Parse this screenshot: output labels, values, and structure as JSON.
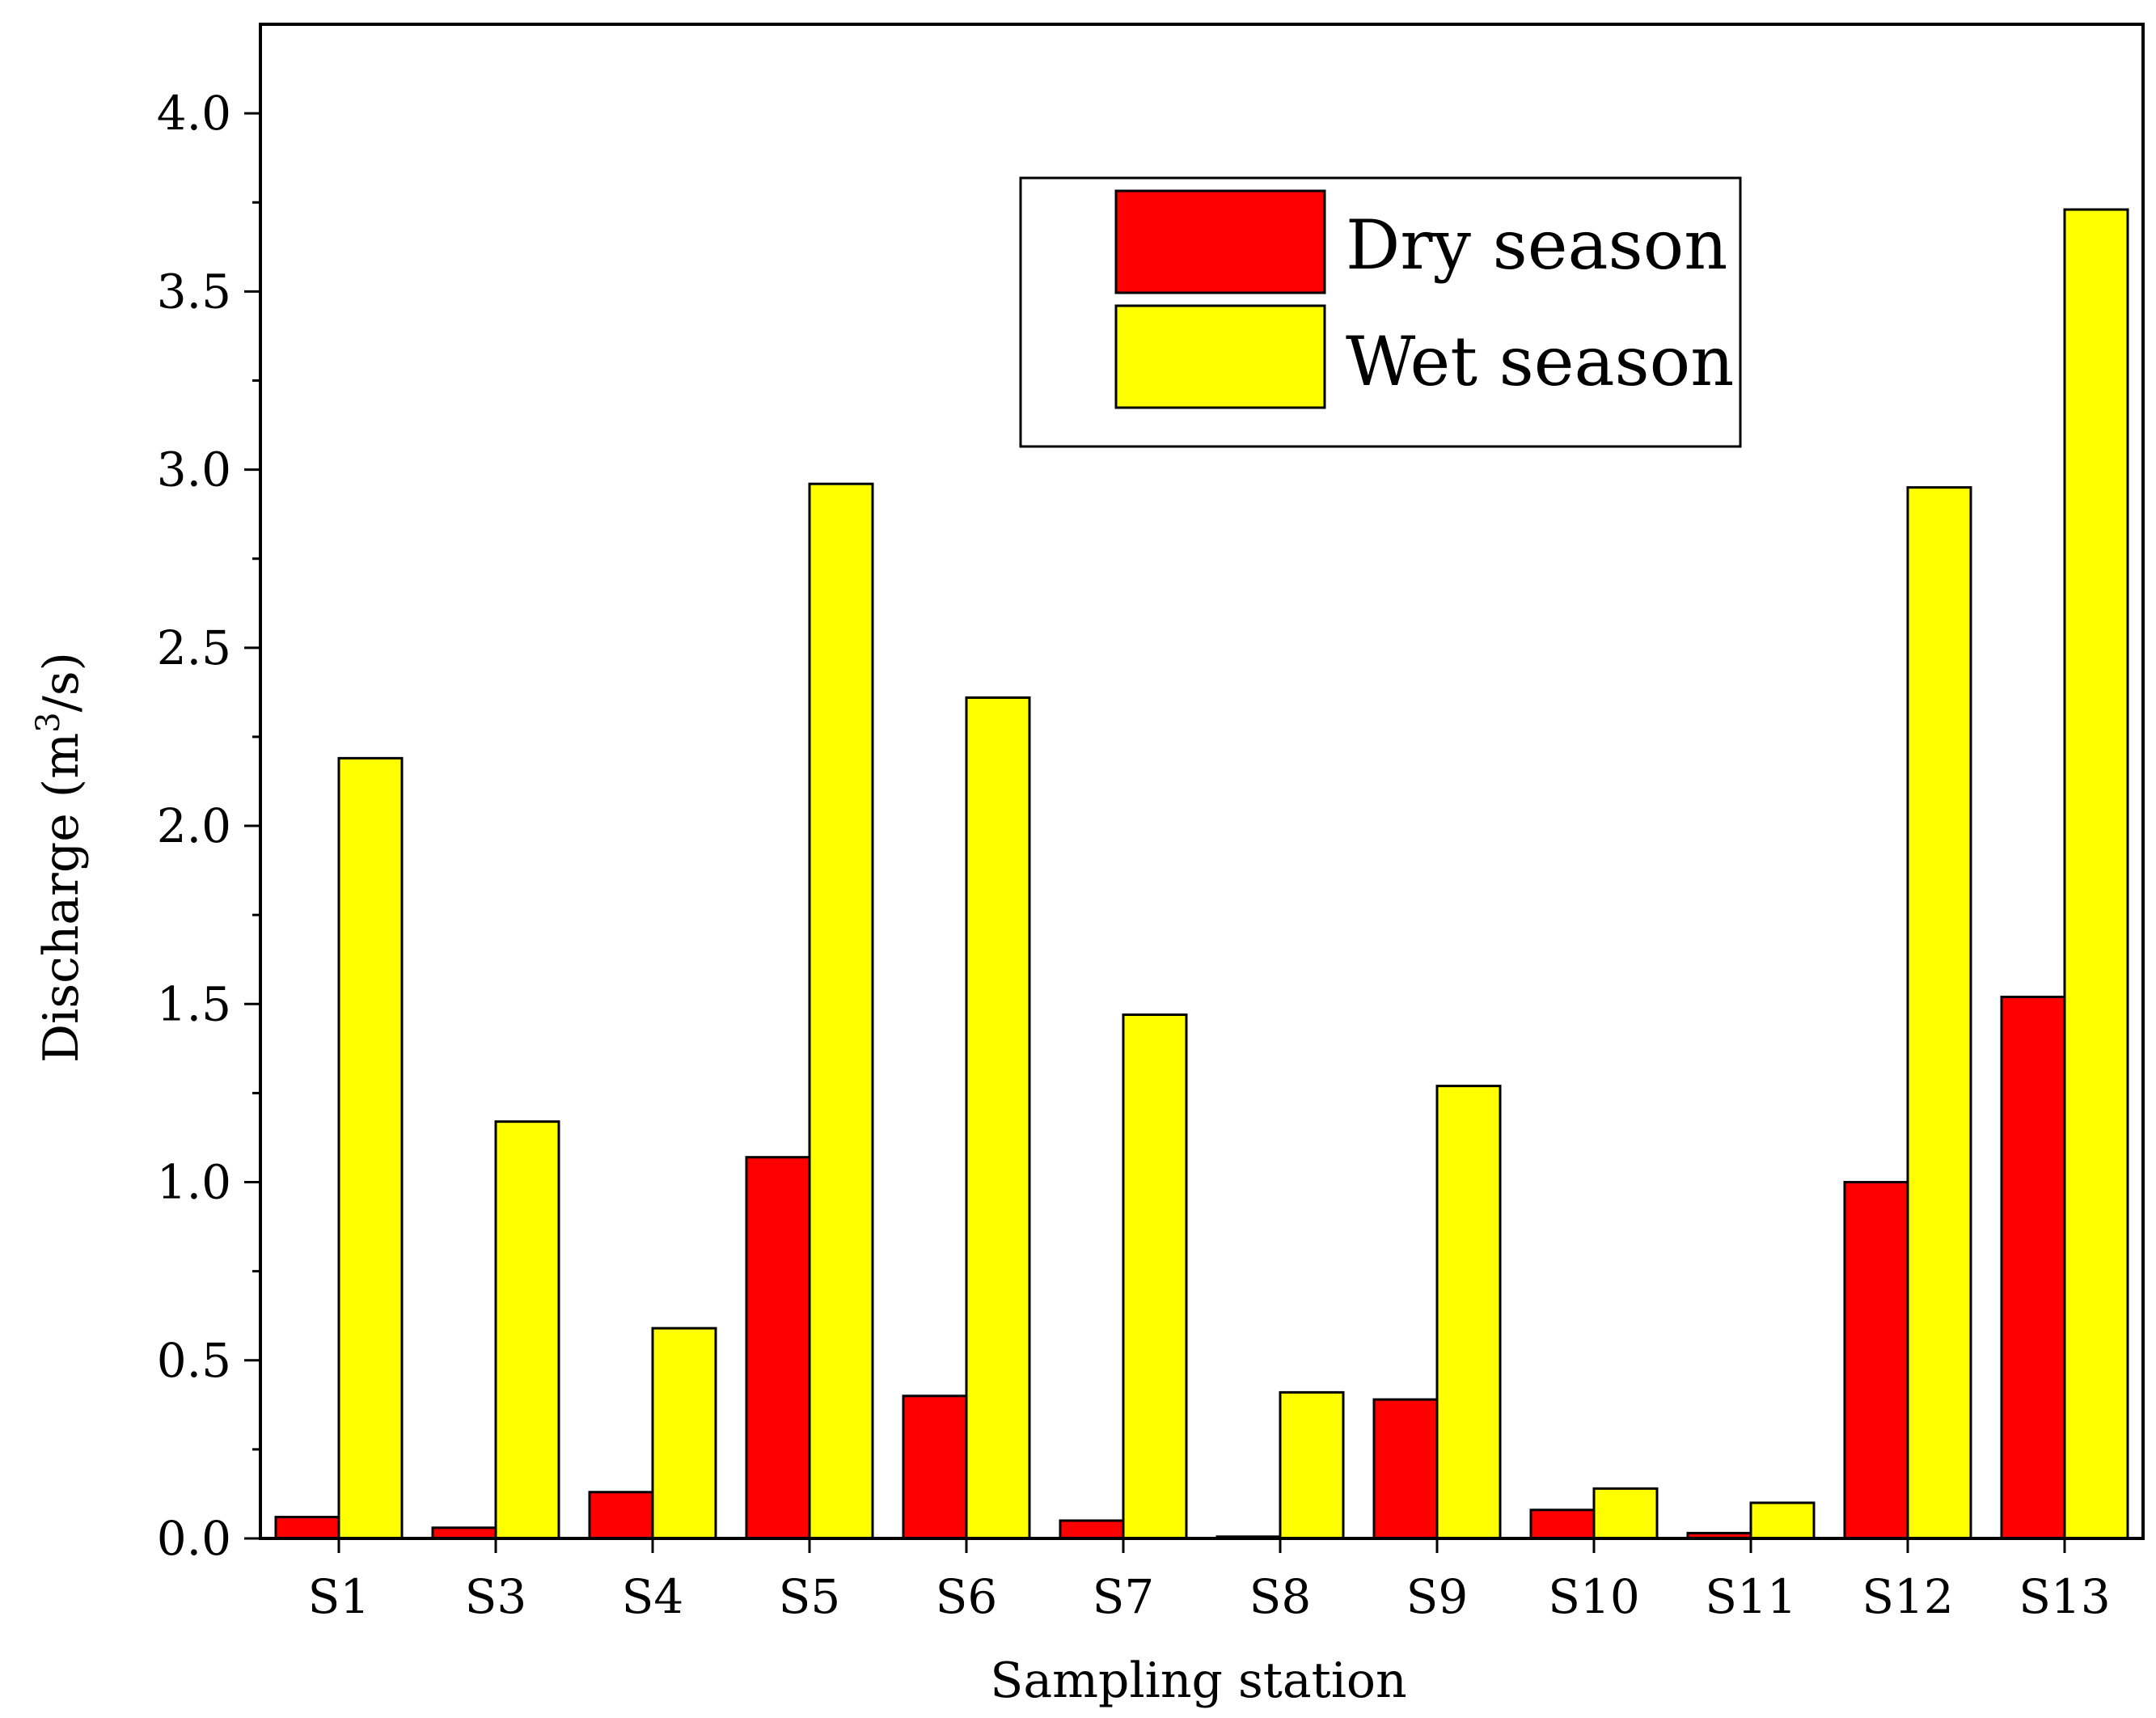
{
  "chart_data": {
    "type": "bar",
    "title": "",
    "categories": [
      "S1",
      "S3",
      "S4",
      "S5",
      "S6",
      "S7",
      "S8",
      "S9",
      "S10",
      "S11",
      "S12",
      "S13"
    ],
    "series": [
      {
        "name": "Dry season",
        "color": "#ff0000",
        "values": [
          0.06,
          0.03,
          0.13,
          1.07,
          0.4,
          0.05,
          0.005,
          0.39,
          0.08,
          0.015,
          1.0,
          1.52
        ]
      },
      {
        "name": "Wet season",
        "color": "#ffff00",
        "values": [
          2.19,
          1.17,
          0.59,
          2.96,
          2.36,
          1.47,
          0.41,
          1.27,
          0.14,
          0.1,
          2.95,
          3.73
        ]
      }
    ],
    "xlabel": "Sampling station",
    "ylabel_main": "Discharge (m",
    "ylabel_sup": "3",
    "ylabel_end": "/s)",
    "ylim": [
      0,
      4.25
    ],
    "yticks": [
      "0.0",
      "0.5",
      "1.0",
      "1.5",
      "2.0",
      "2.5",
      "3.0",
      "3.5",
      "4.0"
    ],
    "grid": false,
    "legend_position": "top-right"
  }
}
